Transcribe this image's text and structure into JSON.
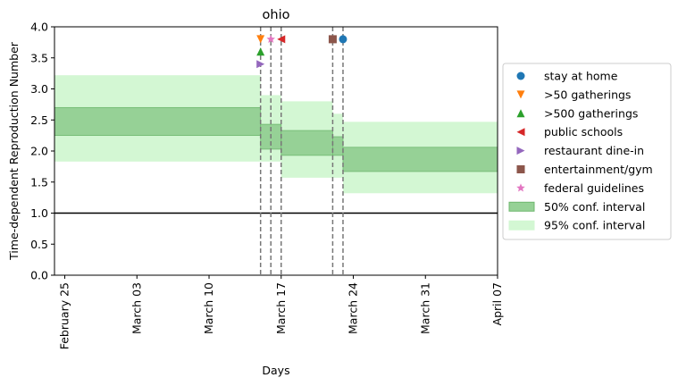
{
  "chart_data": {
    "type": "area",
    "title": "ohio",
    "xlabel": "Days",
    "ylabel": "Time-dependent Reproduction Number",
    "xlim": [
      "2020-02-24",
      "2020-04-07"
    ],
    "ylim": [
      0.0,
      4.0
    ],
    "x_ticks": [
      {
        "date": "2020-02-25",
        "label": "February 25"
      },
      {
        "date": "2020-03-03",
        "label": "March 03"
      },
      {
        "date": "2020-03-10",
        "label": "March 10"
      },
      {
        "date": "2020-03-17",
        "label": "March 17"
      },
      {
        "date": "2020-03-24",
        "label": "March 24"
      },
      {
        "date": "2020-03-31",
        "label": "March 31"
      },
      {
        "date": "2020-04-07",
        "label": "April 07"
      }
    ],
    "y_ticks": [
      "0.0",
      "0.5",
      "1.0",
      "1.5",
      "2.0",
      "2.5",
      "3.0",
      "3.5",
      "4.0"
    ],
    "reference_line": {
      "y": 1.0,
      "color": "#000000"
    },
    "intervals": [
      {
        "x_start": "2020-02-24",
        "x_end": "2020-03-15",
        "ci50": [
          2.25,
          2.7
        ],
        "ci95": [
          1.83,
          3.22
        ]
      },
      {
        "x_start": "2020-03-15",
        "x_end": "2020-03-17",
        "ci50": [
          2.03,
          2.43
        ],
        "ci95": [
          1.83,
          2.9
        ]
      },
      {
        "x_start": "2020-03-17",
        "x_end": "2020-03-22",
        "ci50": [
          1.93,
          2.33
        ],
        "ci95": [
          1.57,
          2.8
        ]
      },
      {
        "x_start": "2020-03-22",
        "x_end": "2020-03-23",
        "ci50": [
          1.93,
          2.23
        ],
        "ci95": [
          1.57,
          2.6
        ]
      },
      {
        "x_start": "2020-03-23",
        "x_end": "2020-04-07",
        "ci50": [
          1.67,
          2.06
        ],
        "ci95": [
          1.32,
          2.47
        ]
      }
    ],
    "interventions": [
      {
        "name": "stay at home",
        "date": "2020-03-23",
        "y": 3.8,
        "marker": "circle",
        "color": "#1f77b4"
      },
      {
        "name": ">50 gatherings",
        "date": "2020-03-15",
        "y": 3.8,
        "marker": "triangle-down",
        "color": "#ff7f0e"
      },
      {
        "name": ">500 gatherings",
        "date": "2020-03-15",
        "y": 3.6,
        "marker": "triangle-up",
        "color": "#2ca02c"
      },
      {
        "name": "public schools",
        "date": "2020-03-17",
        "y": 3.8,
        "marker": "triangle-left",
        "color": "#d62728"
      },
      {
        "name": "restaurant dine-in",
        "date": "2020-03-15",
        "y": 3.4,
        "marker": "triangle-right",
        "color": "#9467bd"
      },
      {
        "name": "entertainment/gym",
        "date": "2020-03-22",
        "y": 3.8,
        "marker": "square",
        "color": "#8c564b"
      },
      {
        "name": "federal guidelines",
        "date": "2020-03-16",
        "y": 3.8,
        "marker": "star",
        "color": "#e377c2"
      }
    ],
    "vlines": [
      "2020-03-15",
      "2020-03-16",
      "2020-03-17",
      "2020-03-22",
      "2020-03-23"
    ],
    "bands": [
      {
        "name": "50% conf. interval",
        "color": "#96d196"
      },
      {
        "name": "95% conf. interval",
        "color": "#d3f7d3"
      }
    ],
    "legend_position": "right"
  }
}
